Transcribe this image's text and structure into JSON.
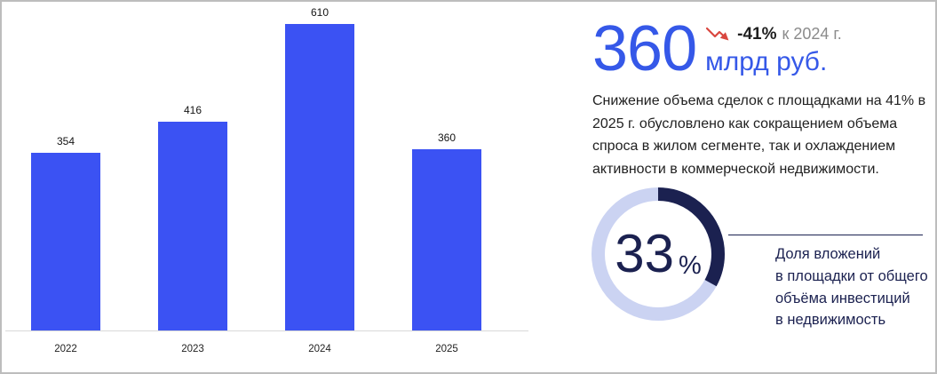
{
  "chart_data": [
    {
      "type": "bar",
      "title": "",
      "xlabel": "",
      "ylabel": "",
      "categories": [
        "2022",
        "2023",
        "2024",
        "2025"
      ],
      "values": [
        354,
        416,
        610,
        360
      ],
      "ylim": [
        0,
        640
      ],
      "grid": false,
      "legend": "none",
      "value_labels_shown": true,
      "bar_color": "#3B52F3",
      "value_label_color": "#141414",
      "axis_line_color": "#D8D8D8"
    },
    {
      "type": "pie",
      "subtype": "donut",
      "values": [
        33,
        67
      ],
      "segment_colors": [
        "#1B2150",
        "#CBD3F2"
      ],
      "start_angle_deg": 0,
      "direction": "clockwise",
      "center_label": "33",
      "center_suffix": "%",
      "caption": "Доля вложений\nв площадки от общего\nобъёма инвестиций\nв недвижимость"
    }
  ],
  "kpi": {
    "value": "360",
    "unit": "млрд руб.",
    "delta": "-41%",
    "delta_note": "к 2024 г.",
    "trend_icon": "trend-down-arrow-icon",
    "description": "Снижение объема сделок  с площадками на 41% в 2025 г. обусловлено как сокращением объема спроса в жилом сегменте, так и охлаждением активности в коммерческой недвижимости."
  },
  "colors": {
    "accent_blue": "#3558E8",
    "navy": "#1B2150",
    "trend_red": "#D9473F",
    "note_gray": "#8B8B8B",
    "body_text": "#212121",
    "frame_border": "#BDBDBD"
  }
}
